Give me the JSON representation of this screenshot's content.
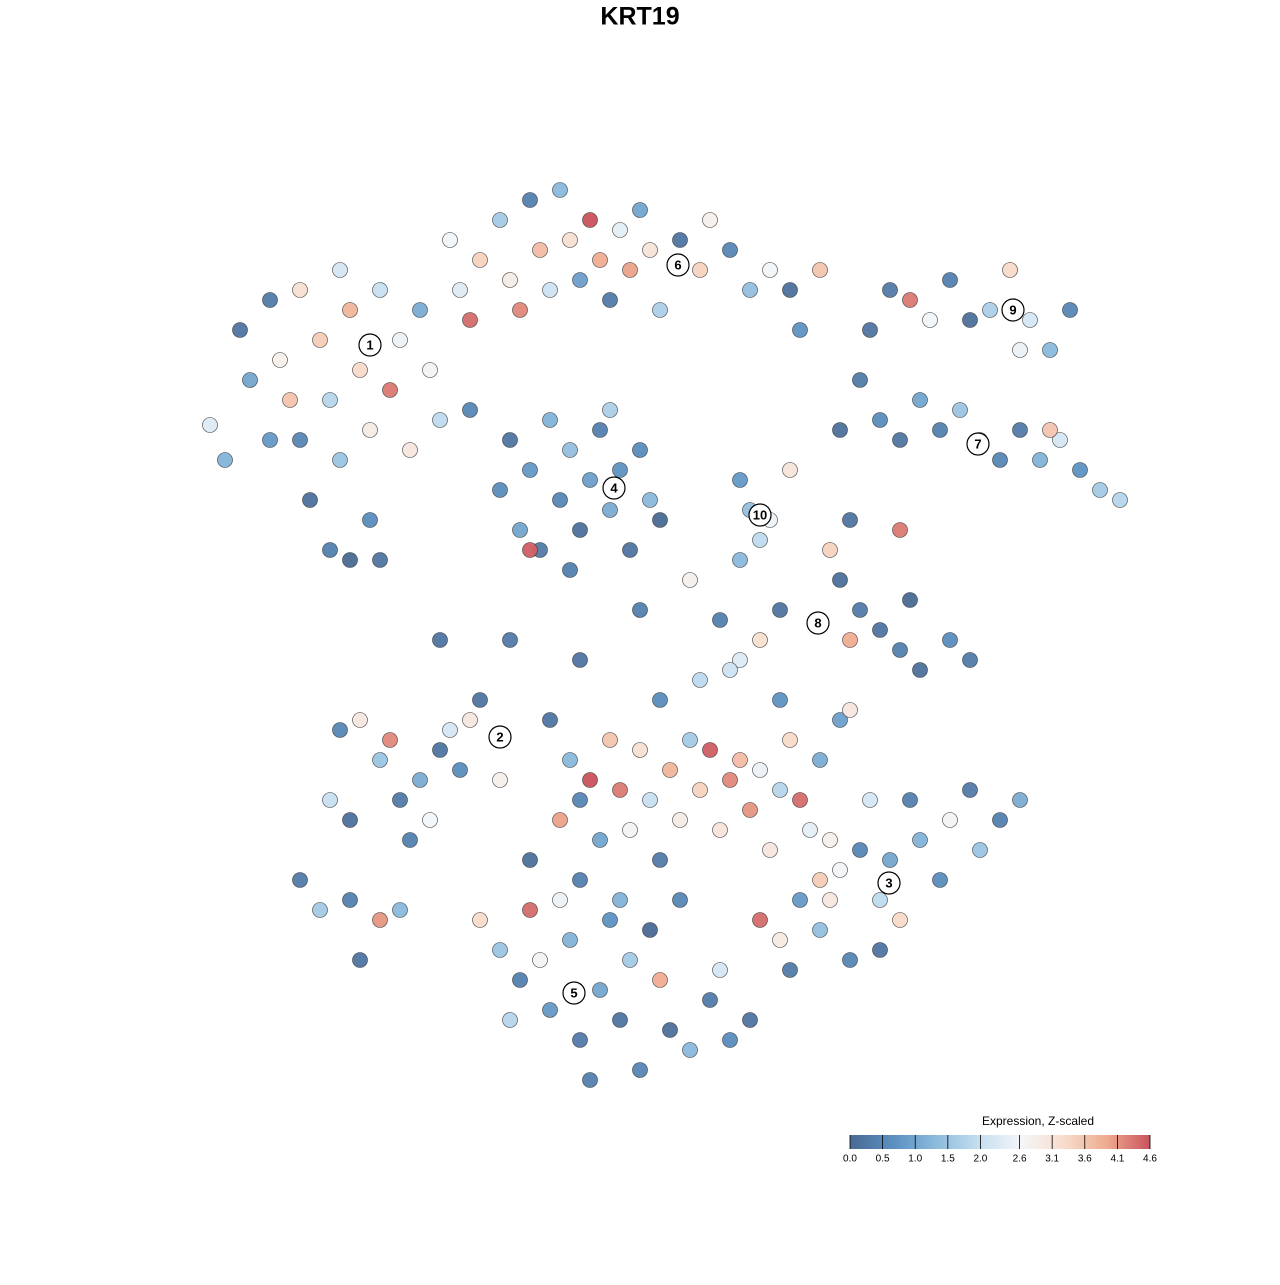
{
  "chart_data": {
    "type": "scatter",
    "title": "KRT19",
    "xlim": [
      18,
      114
    ],
    "ylim": [
      112,
      16
    ],
    "x": [
      21,
      22.5,
      24,
      25,
      27,
      28,
      30,
      30,
      31,
      32,
      33,
      34,
      34,
      35,
      36,
      37,
      37,
      38,
      39,
      40,
      41,
      42,
      43,
      35,
      33,
      38,
      45,
      44,
      27,
      29,
      47,
      48,
      50,
      51,
      52,
      53,
      54,
      55,
      56,
      57,
      58,
      59,
      60,
      61,
      62,
      63,
      64,
      65,
      66,
      68,
      70,
      71,
      73,
      75,
      77,
      79,
      82,
      80,
      47,
      46,
      50,
      51,
      52,
      53,
      54,
      55,
      56,
      57,
      58,
      59,
      60,
      61,
      62,
      63,
      64,
      65,
      66,
      53,
      57,
      61,
      87,
      89,
      91,
      93,
      95,
      97,
      99,
      101,
      103,
      105,
      107,
      102,
      86,
      88,
      90,
      92,
      94,
      96,
      98,
      100,
      102,
      104,
      106,
      108,
      110,
      112,
      105,
      84,
      75,
      77,
      79,
      74,
      76,
      83,
      90,
      85,
      84,
      86,
      88,
      90,
      92,
      95,
      97,
      91,
      82,
      78,
      85,
      72,
      74,
      76,
      34,
      36,
      38,
      39,
      40,
      42,
      44,
      45,
      46,
      47,
      43,
      41,
      33,
      35,
      50,
      48,
      30,
      32,
      35,
      38,
      36,
      40,
      55,
      57,
      58,
      59,
      60,
      61,
      62,
      63,
      64,
      65,
      66,
      67,
      68,
      69,
      70,
      71,
      72,
      73,
      74,
      75,
      76,
      77,
      78,
      79,
      80,
      81,
      82,
      83,
      84,
      85,
      56,
      58,
      62,
      66,
      70,
      73,
      78,
      82,
      53,
      68,
      80,
      82,
      84,
      86,
      88,
      89,
      90,
      91,
      92,
      94,
      95,
      97,
      98,
      100,
      102,
      88,
      85,
      78,
      79,
      76,
      87,
      83,
      48,
      50,
      52,
      54,
      55,
      57,
      58,
      60,
      62,
      63,
      64,
      66,
      67,
      69,
      71,
      73,
      75,
      59,
      51,
      53,
      56,
      61,
      65,
      72,
      44,
      51,
      58,
      64,
      69,
      74
    ],
    "y": [
      42.5,
      46,
      33,
      38,
      30,
      36,
      29,
      44,
      50,
      34,
      40,
      27,
      46,
      31,
      37,
      43,
      52,
      29,
      39,
      34,
      45,
      31,
      37,
      56,
      55,
      56,
      24,
      42,
      44,
      40,
      32,
      26,
      22,
      28,
      31,
      20,
      25,
      29,
      19,
      24,
      28,
      22,
      26,
      30,
      23,
      27,
      21,
      25,
      31,
      24,
      27,
      22,
      25,
      29,
      27,
      29,
      27,
      33,
      41,
      29,
      49,
      44,
      53,
      47,
      55,
      42,
      50,
      45,
      53,
      48,
      43,
      51,
      47,
      55,
      45,
      50,
      52,
      55,
      57,
      41,
      33,
      29,
      30,
      32,
      28,
      32,
      31,
      27,
      32,
      35,
      31,
      35,
      38,
      42,
      44,
      40,
      43,
      41,
      44,
      46,
      43,
      46,
      44,
      47,
      49,
      50,
      43,
      43,
      51,
      52,
      47,
      48,
      54,
      55,
      53,
      52,
      58,
      61,
      63,
      65,
      67,
      64,
      66,
      60,
      62,
      61,
      64,
      62,
      66,
      64,
      73,
      72,
      76,
      74,
      80,
      78,
      75,
      73,
      77,
      72,
      82,
      84,
      80,
      82,
      78,
      70,
      88,
      91,
      90,
      92,
      96,
      91,
      72,
      76,
      80,
      78,
      84,
      74,
      79,
      83,
      75,
      80,
      86,
      77,
      82,
      74,
      79,
      75,
      83,
      78,
      76,
      81,
      77,
      85,
      79,
      74,
      80,
      83,
      76,
      84,
      72,
      71,
      82,
      88,
      90,
      70,
      68,
      67,
      70,
      88,
      86,
      90,
      90,
      93,
      87,
      85,
      90,
      86,
      92,
      80,
      84,
      88,
      82,
      79,
      85,
      82,
      80,
      95,
      96,
      94,
      97,
      92,
      80,
      90,
      92,
      95,
      98,
      96,
      101,
      94,
      104,
      99,
      102,
      96,
      107,
      98,
      103,
      105,
      100,
      104,
      102,
      108,
      102,
      91,
      90,
      92,
      93,
      97,
      64,
      64,
      66,
      61,
      58,
      56
    ],
    "values": [
      2.3,
      1.2,
      0.2,
      1.0,
      0.3,
      2.8,
      3.2,
      0.5,
      0.1,
      3.5,
      1.8,
      2.2,
      1.5,
      3.8,
      3.3,
      2.9,
      0.6,
      2.0,
      4.3,
      2.5,
      3.0,
      1.1,
      2.7,
      0.0,
      0.4,
      0.2,
      2.6,
      1.9,
      0.8,
      3.6,
      4.4,
      3.4,
      1.6,
      2.9,
      4.2,
      0.4,
      3.7,
      2.1,
      1.3,
      3.2,
      0.9,
      4.6,
      3.9,
      0.3,
      2.4,
      4.0,
      1.0,
      3.1,
      1.7,
      0.2,
      3.4,
      2.8,
      0.5,
      1.4,
      2.6,
      0.1,
      3.6,
      0.7,
      0.5,
      2.3,
      0.6,
      0.2,
      1.0,
      0.8,
      0.3,
      1.2,
      0.5,
      1.4,
      0.1,
      0.9,
      0.4,
      1.1,
      0.7,
      0.2,
      0.6,
      1.3,
      0.0,
      4.5,
      0.4,
      1.7,
      0.2,
      0.3,
      4.3,
      2.6,
      0.4,
      0.1,
      1.7,
      3.3,
      2.2,
      1.3,
      0.5,
      2.5,
      0.3,
      0.6,
      0.2,
      1.0,
      0.4,
      1.5,
      2.0,
      0.5,
      0.3,
      1.2,
      2.2,
      0.7,
      1.6,
      1.8,
      3.6,
      0.1,
      1.4,
      2.5,
      3.1,
      0.8,
      1.9,
      3.4,
      4.3,
      0.2,
      0.1,
      0.3,
      0.2,
      0.4,
      0.1,
      0.6,
      0.3,
      0.0,
      1.3,
      0.2,
      3.9,
      0.4,
      2.3,
      3.2,
      0.5,
      3.0,
      1.5,
      4.2,
      0.3,
      1.1,
      0.2,
      2.2,
      0.6,
      3.0,
      2.6,
      0.4,
      2.0,
      0.1,
      2.8,
      0.2,
      0.3,
      1.6,
      0.4,
      4.1,
      0.2,
      1.3,
      0.2,
      1.3,
      0.5,
      4.6,
      1.0,
      3.6,
      4.3,
      2.7,
      3.2,
      2.0,
      0.3,
      3.8,
      2.9,
      1.6,
      3.4,
      4.5,
      3.1,
      4.2,
      3.7,
      4.1,
      2.5,
      3.0,
      1.8,
      3.3,
      4.4,
      2.4,
      1.1,
      2.8,
      0.9,
      3.0,
      4.0,
      0.4,
      1.2,
      0.6,
      1.9,
      2.1,
      0.7,
      3.5,
      0.1,
      0.5,
      0.8,
      1.4,
      2.6,
      0.5,
      1.9,
      1.0,
      3.3,
      0.4,
      1.2,
      0.6,
      2.7,
      0.3,
      1.5,
      0.4,
      1.1,
      0.2,
      0.5,
      2.9,
      0.3,
      4.4,
      2.2,
      3.0,
      3.3,
      1.5,
      0.4,
      2.7,
      0.8,
      1.2,
      0.3,
      1.0,
      0.2,
      1.6,
      0.5,
      3.9,
      0.1,
      1.3,
      0.3,
      0.6,
      0.2,
      0.4,
      1.8,
      4.4,
      2.5,
      0.7,
      0.0,
      2.2,
      0.2,
      0.3,
      0.2,
      0.4,
      2.8,
      1.3
    ],
    "clusters": {
      "labels": [
        "1",
        "2",
        "3",
        "4",
        "5",
        "6",
        "7",
        "8",
        "9",
        "10"
      ],
      "x": [
        37,
        50,
        88.9,
        61.4,
        57.4,
        67.8,
        97.8,
        81.8,
        101.3,
        76
      ],
      "y": [
        34.5,
        73.7,
        88.3,
        48.8,
        99.3,
        26.5,
        44.4,
        62.3,
        31,
        51.5
      ]
    },
    "colorbar": {
      "title": "Expression, Z-scaled",
      "clim": [
        0,
        4.6
      ],
      "colors": [
        "#4a6a94",
        "#5b8fc0",
        "#8bbadc",
        "#c5def0",
        "#f4f6f8",
        "#f8dccb",
        "#eeaa8e",
        "#c9525d"
      ],
      "ticks": [
        {
          "value": 0,
          "label": "0.0"
        },
        0.5,
        {
          "value": 1,
          "label": "1.0"
        },
        1.5,
        {
          "value": 2,
          "label": "2.0"
        },
        2.6,
        3.1,
        3.6,
        4.1,
        4.6
      ]
    }
  }
}
